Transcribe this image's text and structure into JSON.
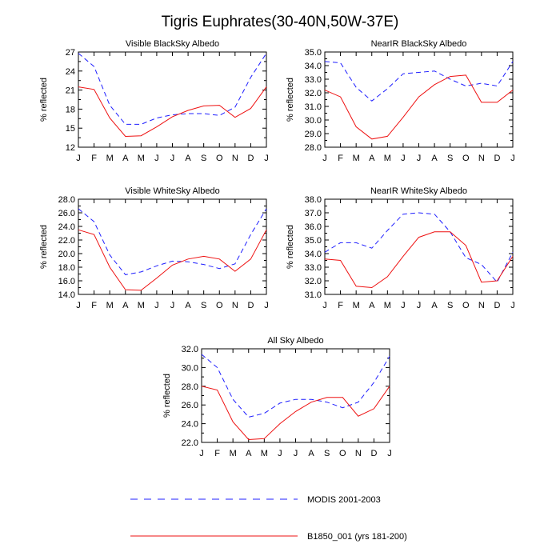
{
  "page_title": "Tigris Euphrates(30-40N,50W-37E)",
  "legend": [
    {
      "label": "MODIS 2001-2003",
      "color": "#1f1fff",
      "dashed": true
    },
    {
      "label": "B1850_001 (yrs 181-200)",
      "color": "#ee1111",
      "dashed": false
    }
  ],
  "chart_data": [
    {
      "type": "line",
      "title": "Visible BlackSky Albedo",
      "ylabel": "% reflected",
      "categories": [
        "J",
        "F",
        "M",
        "A",
        "M",
        "J",
        "J",
        "A",
        "S",
        "O",
        "N",
        "D",
        "J"
      ],
      "ylim": [
        12,
        27
      ],
      "yticks": [
        "12",
        "15",
        "18",
        "21",
        "24",
        "27"
      ],
      "series": [
        {
          "name": "MODIS 2001-2003",
          "values": [
            26.8,
            24.7,
            18.6,
            15.6,
            15.6,
            16.6,
            17.1,
            17.3,
            17.3,
            17.0,
            18.3,
            23.0,
            26.8
          ]
        },
        {
          "name": "B1850_001 (yrs 181-200)",
          "values": [
            21.5,
            21.1,
            16.6,
            13.7,
            13.8,
            15.2,
            16.8,
            17.8,
            18.5,
            18.6,
            16.7,
            18.1,
            21.5
          ]
        }
      ]
    },
    {
      "type": "line",
      "title": "NearIR BlackSky Albedo",
      "ylabel": "% reflected",
      "categories": [
        "J",
        "F",
        "M",
        "A",
        "M",
        "J",
        "J",
        "A",
        "S",
        "O",
        "N",
        "D",
        "J"
      ],
      "ylim": [
        28,
        35
      ],
      "yticks": [
        "28.0",
        "29.0",
        "30.0",
        "31.0",
        "32.0",
        "33.0",
        "34.0",
        "35.0"
      ],
      "series": [
        {
          "name": "MODIS 2001-2003",
          "values": [
            34.3,
            34.2,
            32.4,
            31.4,
            32.3,
            33.4,
            33.5,
            33.6,
            33.0,
            32.5,
            32.7,
            32.5,
            34.3
          ]
        },
        {
          "name": "B1850_001 (yrs 181-200)",
          "values": [
            32.2,
            31.7,
            29.5,
            28.6,
            28.8,
            30.2,
            31.7,
            32.6,
            33.2,
            33.3,
            31.3,
            31.3,
            32.2
          ]
        }
      ]
    },
    {
      "type": "line",
      "title": "Visible WhiteSky Albedo",
      "ylabel": "% reflected",
      "categories": [
        "J",
        "F",
        "M",
        "A",
        "M",
        "J",
        "J",
        "A",
        "S",
        "O",
        "N",
        "D",
        "J"
      ],
      "ylim": [
        14,
        28
      ],
      "yticks": [
        "14.0",
        "16.0",
        "18.0",
        "20.0",
        "22.0",
        "24.0",
        "26.0",
        "28.0"
      ],
      "series": [
        {
          "name": "MODIS 2001-2003",
          "values": [
            26.6,
            24.7,
            19.8,
            16.9,
            17.3,
            18.2,
            18.9,
            18.8,
            18.4,
            17.8,
            18.5,
            22.8,
            26.6
          ]
        },
        {
          "name": "B1850_001 (yrs 181-200)",
          "values": [
            23.5,
            22.8,
            18.0,
            14.7,
            14.6,
            16.4,
            18.3,
            19.2,
            19.6,
            19.2,
            17.4,
            19.2,
            23.5
          ]
        }
      ]
    },
    {
      "type": "line",
      "title": "NearIR WhiteSky Albedo",
      "ylabel": "% reflected",
      "categories": [
        "J",
        "F",
        "M",
        "A",
        "M",
        "J",
        "J",
        "A",
        "S",
        "O",
        "N",
        "D",
        "J"
      ],
      "ylim": [
        31,
        38
      ],
      "yticks": [
        "31.0",
        "32.0",
        "33.0",
        "34.0",
        "35.0",
        "36.0",
        "37.0",
        "38.0"
      ],
      "series": [
        {
          "name": "MODIS 2001-2003",
          "values": [
            34.1,
            34.8,
            34.8,
            34.4,
            35.7,
            36.9,
            37.0,
            36.9,
            35.6,
            33.7,
            33.2,
            31.9,
            34.1
          ]
        },
        {
          "name": "B1850_001 (yrs 181-200)",
          "values": [
            33.6,
            33.5,
            31.6,
            31.5,
            32.3,
            33.8,
            35.2,
            35.6,
            35.6,
            34.6,
            31.9,
            32.0,
            33.8
          ]
        }
      ]
    },
    {
      "type": "line",
      "title": "All Sky Albedo",
      "ylabel": "% reflected",
      "categories": [
        "J",
        "F",
        "M",
        "A",
        "M",
        "J",
        "J",
        "A",
        "S",
        "O",
        "N",
        "D",
        "J"
      ],
      "ylim": [
        22,
        32
      ],
      "yticks": [
        "22.0",
        "24.0",
        "26.0",
        "28.0",
        "30.0",
        "32.0"
      ],
      "series": [
        {
          "name": "MODIS 2001-2003",
          "values": [
            31.4,
            30.0,
            26.6,
            24.7,
            25.1,
            26.2,
            26.6,
            26.6,
            26.3,
            25.7,
            26.3,
            28.4,
            31.2
          ]
        },
        {
          "name": "B1850_001 (yrs 181-200)",
          "values": [
            28.0,
            27.6,
            24.2,
            22.3,
            22.4,
            24.0,
            25.3,
            26.3,
            26.8,
            26.8,
            24.8,
            25.6,
            28.0
          ]
        }
      ]
    }
  ]
}
